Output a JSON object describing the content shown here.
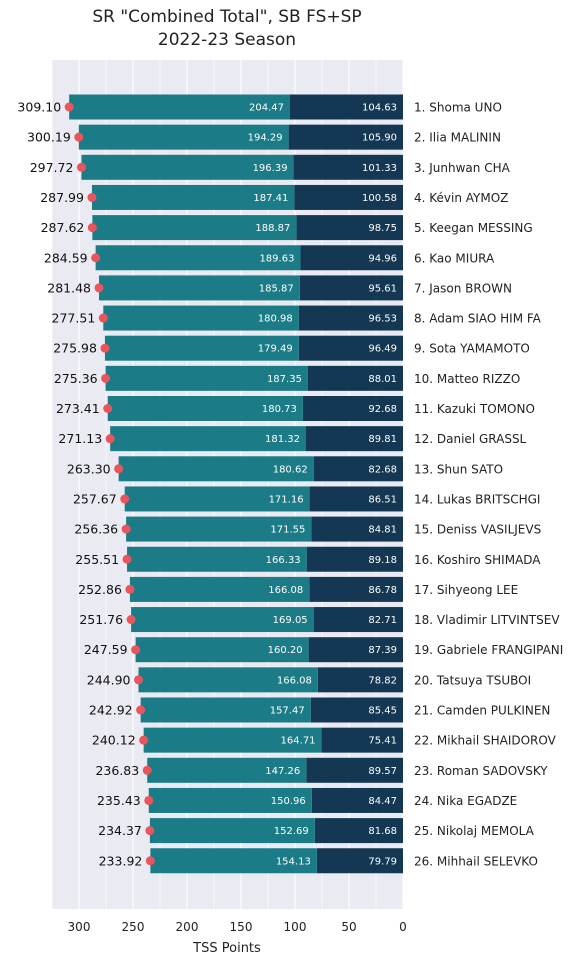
{
  "chart_data": {
    "type": "bar",
    "orientation": "horizontal-stacked",
    "title": [
      "SR \"Combined Total\", SB FS+SP",
      "2022-23 Season"
    ],
    "xlabel": "TSS Points",
    "xlim": [
      0,
      325
    ],
    "x_reversed": true,
    "xticks": [
      300,
      250,
      200,
      150,
      100,
      50,
      0
    ],
    "grid": true,
    "colors": {
      "fs": "#1b7b87",
      "sp": "#143853",
      "marker": "#e8555d",
      "background": "#eaeaf2",
      "grid": "#ffffff"
    },
    "series": [
      {
        "key": "sp",
        "values": [
          104.63,
          105.9,
          101.33,
          100.58,
          98.75,
          94.96,
          95.61,
          96.53,
          96.49,
          88.01,
          92.68,
          89.81,
          82.68,
          86.51,
          84.81,
          89.18,
          86.78,
          82.71,
          87.39,
          78.82,
          85.45,
          75.41,
          89.57,
          84.47,
          81.68,
          79.79
        ]
      },
      {
        "key": "fs",
        "values": [
          204.47,
          194.29,
          196.39,
          187.41,
          188.87,
          189.63,
          185.87,
          180.98,
          179.49,
          187.35,
          180.73,
          181.32,
          180.62,
          171.16,
          171.55,
          166.33,
          166.08,
          169.05,
          160.2,
          166.08,
          157.47,
          164.71,
          147.26,
          150.96,
          152.69,
          154.13
        ]
      }
    ],
    "totals": [
      309.1,
      300.19,
      297.72,
      287.99,
      287.62,
      284.59,
      281.48,
      277.51,
      275.98,
      275.36,
      273.41,
      271.13,
      263.3,
      257.67,
      256.36,
      255.51,
      252.86,
      251.76,
      247.59,
      244.9,
      242.92,
      240.12,
      236.83,
      235.43,
      234.37,
      233.92
    ],
    "categories": [
      "1. Shoma UNO",
      "2. Ilia MALININ",
      "3. Junhwan CHA",
      "4. Kévin AYMOZ",
      "5. Keegan MESSING",
      "6. Kao MIURA",
      "7. Jason BROWN",
      "8. Adam SIAO HIM FA",
      "9. Sota YAMAMOTO",
      "10. Matteo RIZZO",
      "11. Kazuki TOMONO",
      "12. Daniel GRASSL",
      "13. Shun SATO",
      "14. Lukas BRITSCHGI",
      "15. Deniss VASILJEVS",
      "16. Koshiro SHIMADA",
      "17. Sihyeong LEE",
      "18. Vladimir LITVINTSEV",
      "19. Gabriele FRANGIPANI",
      "20. Tatsuya TSUBOI",
      "21. Camden PULKINEN",
      "22. Mikhail SHAIDOROV",
      "23. Roman SADOVSKY",
      "24. Nika EGADZE",
      "25. Nikolaj MEMOLA",
      "26. Mihhail SELEVKO"
    ]
  }
}
